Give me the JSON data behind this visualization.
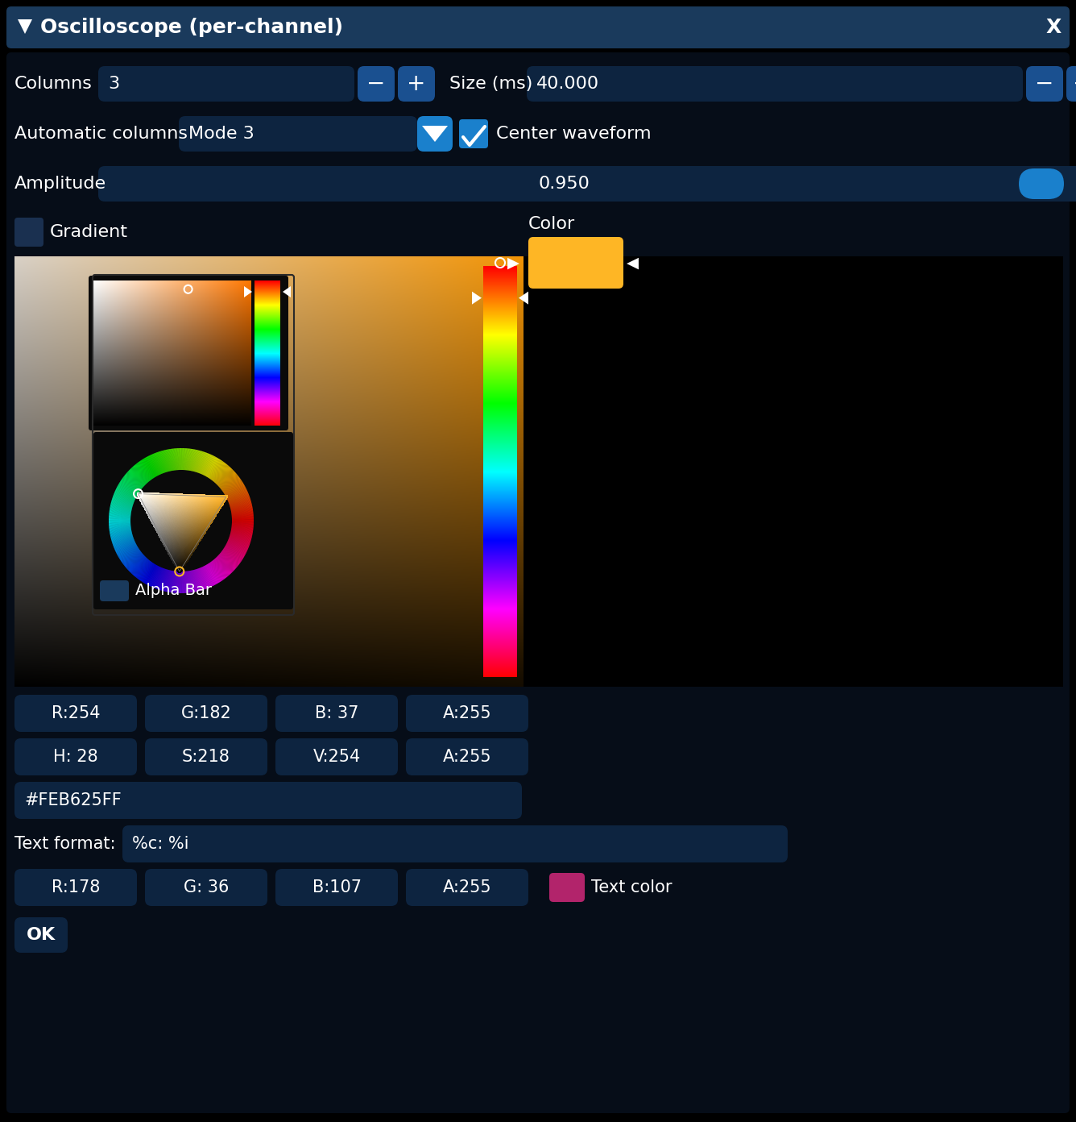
{
  "bg_color": "#000000",
  "titlebar_color": "#1a3a5c",
  "main_bg": "#060d18",
  "widget_color": "#0d2440",
  "btn_color": "#1a5090",
  "dropdown_btn_color": "#1a80cc",
  "title": "Oscilloscope (per-channel)",
  "columns_label": "Columns",
  "columns_value": "3",
  "size_label": "Size (ms)",
  "size_value": "40.000",
  "auto_columns_label": "Automatic columns",
  "auto_columns_value": "Mode 3",
  "center_waveform_label": "Center waveform",
  "amplitude_label": "Amplitude",
  "amplitude_value": "0.950",
  "gradient_label": "Gradient",
  "color_label": "Color",
  "rgba_row1": [
    "R:254",
    "G:182",
    "B: 37",
    "A:255"
  ],
  "rgba_row2": [
    "H: 28",
    "S:218",
    "V:254",
    "A:255"
  ],
  "hex_value": "#FEB625FF",
  "text_format_label": "Text format:",
  "text_format_value": "%c: %i",
  "text_color_row": [
    "R:178",
    "G: 36",
    "B:107",
    "A:255"
  ],
  "text_color_label": "Text color",
  "text_color_swatch": "#B2246B",
  "ok_label": "OK",
  "alpha_bar_label": "Alpha Bar",
  "selected_color": "#FEB625",
  "fig_width": 13.36,
  "fig_height": 13.92
}
